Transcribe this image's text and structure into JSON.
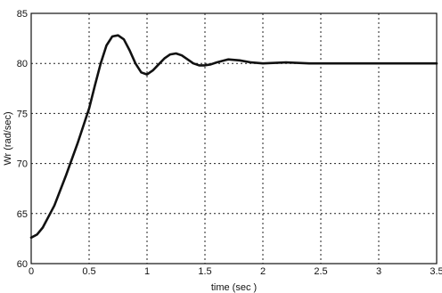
{
  "chart_data": {
    "type": "line",
    "title": "",
    "xlabel": "time (sec )",
    "ylabel": "Wr (rad/sec)",
    "xlim": [
      0,
      3.5
    ],
    "ylim": [
      60,
      85
    ],
    "grid": true,
    "x_ticks": [
      "0",
      "0.5",
      "1",
      "1.5",
      "2",
      "2.5",
      "3",
      "3.5"
    ],
    "y_ticks": [
      "60",
      "65",
      "70",
      "75",
      "80",
      "85"
    ],
    "series": [
      {
        "x": [
          0,
          0.05,
          0.1,
          0.2,
          0.3,
          0.4,
          0.5,
          0.55,
          0.6,
          0.65,
          0.7,
          0.75,
          0.8,
          0.85,
          0.9,
          0.95,
          1.0,
          1.05,
          1.1,
          1.15,
          1.2,
          1.25,
          1.3,
          1.35,
          1.4,
          1.45,
          1.5,
          1.55,
          1.6,
          1.7,
          1.8,
          1.9,
          2.0,
          2.2,
          2.4,
          2.6,
          2.8,
          3.0,
          3.2,
          3.5
        ],
        "y": [
          62.6,
          62.9,
          63.6,
          65.8,
          68.8,
          72.0,
          75.5,
          77.8,
          80.0,
          81.8,
          82.7,
          82.8,
          82.4,
          81.3,
          80.0,
          79.1,
          78.9,
          79.3,
          79.9,
          80.5,
          80.9,
          81.0,
          80.8,
          80.4,
          80.0,
          79.8,
          79.8,
          79.9,
          80.1,
          80.4,
          80.3,
          80.1,
          80.0,
          80.1,
          80.0,
          80.0,
          80.0,
          80.0,
          80.0,
          80.0
        ]
      }
    ]
  }
}
